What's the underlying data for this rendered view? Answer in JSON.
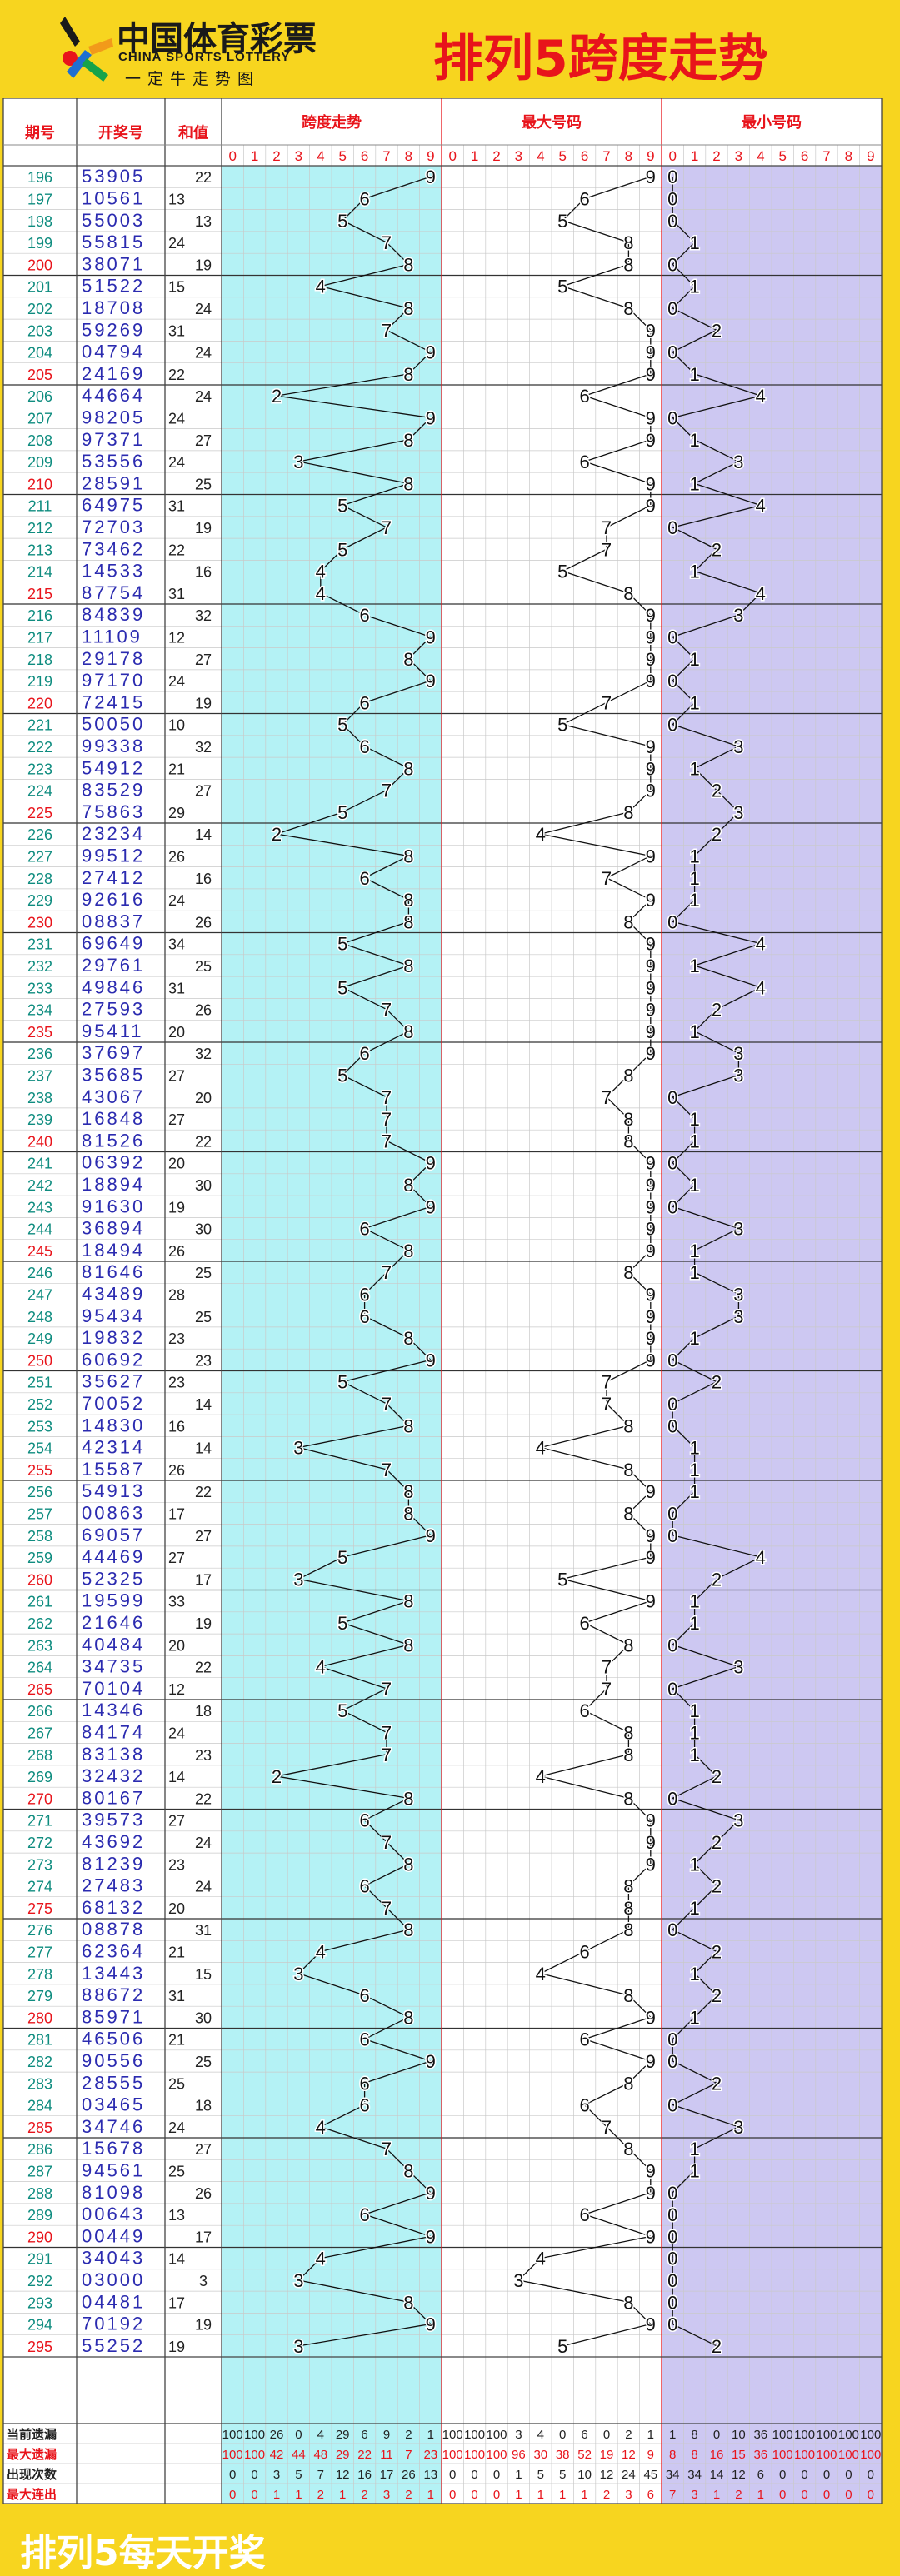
{
  "header": {
    "brand_cn": "中国体育彩票",
    "brand_en": "CHINA SPORTS LOTTERY",
    "brand_slogan": "一定牛走势图",
    "title": "排列5跨度走势"
  },
  "columns": {
    "period": "期号",
    "draw": "开奖号",
    "sum": "和值",
    "span": "跨度走势",
    "max": "最大号码",
    "min": "最小号码",
    "digits": [
      "0",
      "1",
      "2",
      "3",
      "4",
      "5",
      "6",
      "7",
      "8",
      "9"
    ]
  },
  "stats_labels": [
    "当前遗漏",
    "最大遗漏",
    "出现次数",
    "最大连出"
  ],
  "footer": {
    "text": "排列5每天开奖"
  },
  "colors": {
    "accent": "#e8141b",
    "yellow": "#f7d51f",
    "draw_blue": "#2b2bb0",
    "teal": "#0e8c7f",
    "span_bg": "#b4f2f5",
    "min_bg": "#cdc8f2"
  },
  "chart_data": {
    "type": "table",
    "title": "排列5跨度走势",
    "rows": [
      {
        "p": "196",
        "d": "53905",
        "s": 22
      },
      {
        "p": "197",
        "d": "10561",
        "s": 13
      },
      {
        "p": "198",
        "d": "55003",
        "s": 13
      },
      {
        "p": "199",
        "d": "55815",
        "s": 24
      },
      {
        "p": "200",
        "d": "38071",
        "s": 19
      },
      {
        "p": "201",
        "d": "51522",
        "s": 15
      },
      {
        "p": "202",
        "d": "18708",
        "s": 24
      },
      {
        "p": "203",
        "d": "59269",
        "s": 31
      },
      {
        "p": "204",
        "d": "04794",
        "s": 24
      },
      {
        "p": "205",
        "d": "24169",
        "s": 22
      },
      {
        "p": "206",
        "d": "44664",
        "s": 24
      },
      {
        "p": "207",
        "d": "98205",
        "s": 24
      },
      {
        "p": "208",
        "d": "97371",
        "s": 27
      },
      {
        "p": "209",
        "d": "53556",
        "s": 24
      },
      {
        "p": "210",
        "d": "28591",
        "s": 25
      },
      {
        "p": "211",
        "d": "64975",
        "s": 31
      },
      {
        "p": "212",
        "d": "72703",
        "s": 19
      },
      {
        "p": "213",
        "d": "73462",
        "s": 22
      },
      {
        "p": "214",
        "d": "14533",
        "s": 16
      },
      {
        "p": "215",
        "d": "87754",
        "s": 31
      },
      {
        "p": "216",
        "d": "84839",
        "s": 32
      },
      {
        "p": "217",
        "d": "11109",
        "s": 12
      },
      {
        "p": "218",
        "d": "29178",
        "s": 27
      },
      {
        "p": "219",
        "d": "97170",
        "s": 24
      },
      {
        "p": "220",
        "d": "72415",
        "s": 19
      },
      {
        "p": "221",
        "d": "50050",
        "s": 10
      },
      {
        "p": "222",
        "d": "99338",
        "s": 32
      },
      {
        "p": "223",
        "d": "54912",
        "s": 21
      },
      {
        "p": "224",
        "d": "83529",
        "s": 27
      },
      {
        "p": "225",
        "d": "75863",
        "s": 29
      },
      {
        "p": "226",
        "d": "23234",
        "s": 14
      },
      {
        "p": "227",
        "d": "99512",
        "s": 26
      },
      {
        "p": "228",
        "d": "27412",
        "s": 16
      },
      {
        "p": "229",
        "d": "92616",
        "s": 24
      },
      {
        "p": "230",
        "d": "08837",
        "s": 26
      },
      {
        "p": "231",
        "d": "69649",
        "s": 34
      },
      {
        "p": "232",
        "d": "29761",
        "s": 25
      },
      {
        "p": "233",
        "d": "49846",
        "s": 31
      },
      {
        "p": "234",
        "d": "27593",
        "s": 26
      },
      {
        "p": "235",
        "d": "95411",
        "s": 20
      },
      {
        "p": "236",
        "d": "37697",
        "s": 32
      },
      {
        "p": "237",
        "d": "35685",
        "s": 27
      },
      {
        "p": "238",
        "d": "43067",
        "s": 20
      },
      {
        "p": "239",
        "d": "16848",
        "s": 27
      },
      {
        "p": "240",
        "d": "81526",
        "s": 22
      },
      {
        "p": "241",
        "d": "06392",
        "s": 20
      },
      {
        "p": "242",
        "d": "18894",
        "s": 30
      },
      {
        "p": "243",
        "d": "91630",
        "s": 19
      },
      {
        "p": "244",
        "d": "36894",
        "s": 30
      },
      {
        "p": "245",
        "d": "18494",
        "s": 26
      },
      {
        "p": "246",
        "d": "81646",
        "s": 25
      },
      {
        "p": "247",
        "d": "43489",
        "s": 28
      },
      {
        "p": "248",
        "d": "95434",
        "s": 25
      },
      {
        "p": "249",
        "d": "19832",
        "s": 23
      },
      {
        "p": "250",
        "d": "60692",
        "s": 23
      },
      {
        "p": "251",
        "d": "35627",
        "s": 23
      },
      {
        "p": "252",
        "d": "70052",
        "s": 14
      },
      {
        "p": "253",
        "d": "14830",
        "s": 16
      },
      {
        "p": "254",
        "d": "42314",
        "s": 14
      },
      {
        "p": "255",
        "d": "15587",
        "s": 26
      },
      {
        "p": "256",
        "d": "54913",
        "s": 22
      },
      {
        "p": "257",
        "d": "00863",
        "s": 17
      },
      {
        "p": "258",
        "d": "69057",
        "s": 27
      },
      {
        "p": "259",
        "d": "44469",
        "s": 27
      },
      {
        "p": "260",
        "d": "52325",
        "s": 17
      },
      {
        "p": "261",
        "d": "19599",
        "s": 33
      },
      {
        "p": "262",
        "d": "21646",
        "s": 19
      },
      {
        "p": "263",
        "d": "40484",
        "s": 20
      },
      {
        "p": "264",
        "d": "34735",
        "s": 22
      },
      {
        "p": "265",
        "d": "70104",
        "s": 12
      },
      {
        "p": "266",
        "d": "14346",
        "s": 18
      },
      {
        "p": "267",
        "d": "84174",
        "s": 24
      },
      {
        "p": "268",
        "d": "83138",
        "s": 23
      },
      {
        "p": "269",
        "d": "32432",
        "s": 14
      },
      {
        "p": "270",
        "d": "80167",
        "s": 22
      },
      {
        "p": "271",
        "d": "39573",
        "s": 27
      },
      {
        "p": "272",
        "d": "43692",
        "s": 24
      },
      {
        "p": "273",
        "d": "81239",
        "s": 23
      },
      {
        "p": "274",
        "d": "27483",
        "s": 24
      },
      {
        "p": "275",
        "d": "68132",
        "s": 20
      },
      {
        "p": "276",
        "d": "08878",
        "s": 31
      },
      {
        "p": "277",
        "d": "62364",
        "s": 21
      },
      {
        "p": "278",
        "d": "13443",
        "s": 15
      },
      {
        "p": "279",
        "d": "88672",
        "s": 31
      },
      {
        "p": "280",
        "d": "85971",
        "s": 30
      },
      {
        "p": "281",
        "d": "46506",
        "s": 21
      },
      {
        "p": "282",
        "d": "90556",
        "s": 25
      },
      {
        "p": "283",
        "d": "28555",
        "s": 25
      },
      {
        "p": "284",
        "d": "03465",
        "s": 18
      },
      {
        "p": "285",
        "d": "34746",
        "s": 24
      },
      {
        "p": "286",
        "d": "15678",
        "s": 27
      },
      {
        "p": "287",
        "d": "94561",
        "s": 25
      },
      {
        "p": "288",
        "d": "81098",
        "s": 26
      },
      {
        "p": "289",
        "d": "00643",
        "s": 13
      },
      {
        "p": "290",
        "d": "00449",
        "s": 17
      },
      {
        "p": "291",
        "d": "34043",
        "s": 14
      },
      {
        "p": "292",
        "d": "03000",
        "s": 3
      },
      {
        "p": "293",
        "d": "04481",
        "s": 17
      },
      {
        "p": "294",
        "d": "70192",
        "s": 19
      },
      {
        "p": "295",
        "d": "55252",
        "s": 19
      }
    ],
    "stats": {
      "span": [
        [
          100,
          100,
          26,
          0,
          4,
          29,
          6,
          9,
          2,
          1
        ],
        [
          100,
          100,
          42,
          44,
          48,
          29,
          22,
          11,
          7,
          23
        ],
        [
          0,
          0,
          3,
          5,
          7,
          12,
          16,
          17,
          26,
          13
        ],
        [
          0,
          0,
          1,
          1,
          2,
          1,
          2,
          3,
          2,
          1
        ]
      ],
      "max": [
        [
          100,
          100,
          100,
          3,
          4,
          0,
          6,
          0,
          2,
          1
        ],
        [
          100,
          100,
          100,
          96,
          30,
          38,
          52,
          19,
          12,
          9
        ],
        [
          0,
          0,
          0,
          1,
          5,
          5,
          10,
          12,
          24,
          45
        ],
        [
          0,
          0,
          0,
          1,
          1,
          1,
          1,
          2,
          3,
          6
        ]
      ],
      "min": [
        [
          1,
          8,
          0,
          10,
          36,
          100,
          100,
          100,
          100,
          100
        ],
        [
          8,
          8,
          16,
          15,
          36,
          100,
          100,
          100,
          100,
          100
        ],
        [
          34,
          34,
          14,
          12,
          6,
          0,
          0,
          0,
          0,
          0
        ],
        [
          7,
          3,
          1,
          2,
          1,
          0,
          0,
          0,
          0,
          0
        ]
      ]
    }
  }
}
